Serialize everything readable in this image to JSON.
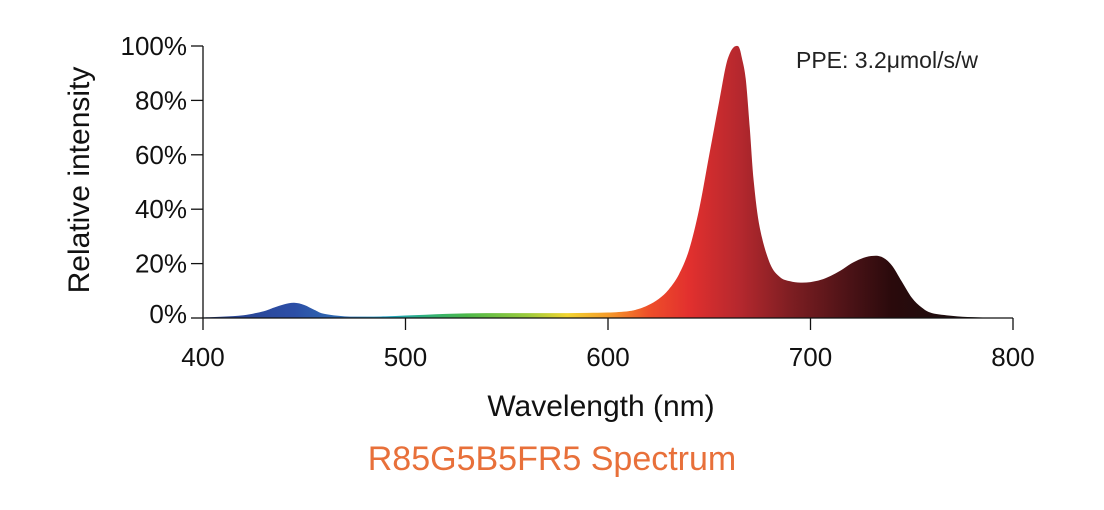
{
  "chart_data": {
    "type": "area",
    "title": "R85G5B5FR5 Spectrum",
    "xlabel": "Wavelength (nm)",
    "ylabel": "Relative intensity",
    "xlim": [
      400,
      800
    ],
    "ylim": [
      0,
      100
    ],
    "x_ticks": [
      400,
      500,
      600,
      700,
      800
    ],
    "x_tick_labels": [
      "400",
      "500",
      "600",
      "700",
      "800"
    ],
    "y_ticks": [
      0,
      20,
      40,
      60,
      80,
      100
    ],
    "y_tick_labels": [
      "0%",
      "20%",
      "40%",
      "60%",
      "80%",
      "100%"
    ],
    "annotation": "PPE:  3.2μmol/s/w",
    "grid": false,
    "x": [
      400,
      410,
      420,
      430,
      435,
      440,
      445,
      450,
      455,
      460,
      470,
      480,
      490,
      500,
      510,
      520,
      530,
      540,
      550,
      560,
      570,
      580,
      590,
      600,
      610,
      615,
      620,
      625,
      630,
      635,
      640,
      645,
      650,
      655,
      658,
      660,
      662,
      664,
      665,
      666,
      668,
      670,
      672,
      675,
      680,
      685,
      690,
      695,
      700,
      705,
      710,
      715,
      720,
      725,
      730,
      735,
      740,
      745,
      750,
      755,
      760,
      770,
      780,
      790,
      800
    ],
    "y": [
      0.2,
      0.5,
      1.0,
      2.5,
      3.8,
      5.0,
      5.6,
      4.8,
      3.0,
      1.5,
      0.6,
      0.5,
      0.6,
      0.9,
      1.2,
      1.5,
      1.7,
      1.8,
      1.8,
      1.8,
      1.8,
      1.8,
      1.9,
      2.0,
      2.5,
      3.3,
      4.8,
      7.0,
      10.5,
      16.0,
      25.0,
      40.0,
      60.0,
      80.0,
      92.0,
      97.0,
      99.5,
      100.0,
      99.0,
      96.0,
      88.0,
      70.0,
      50.0,
      33.0,
      20.0,
      15.0,
      13.5,
      13.0,
      13.2,
      14.0,
      15.5,
      17.5,
      20.0,
      21.8,
      22.8,
      22.5,
      19.5,
      13.5,
      7.5,
      3.8,
      1.8,
      0.8,
      0.3,
      0.1,
      0.0
    ],
    "colors": {
      "caption": "#E8703A",
      "axis": "#111111",
      "spectrum_stops": [
        {
          "nm": 400,
          "color": "#27408B"
        },
        {
          "nm": 445,
          "color": "#2C4EA6"
        },
        {
          "nm": 470,
          "color": "#2F6FB5"
        },
        {
          "nm": 490,
          "color": "#1FA1C7"
        },
        {
          "nm": 510,
          "color": "#2FB07C"
        },
        {
          "nm": 530,
          "color": "#4CB84A"
        },
        {
          "nm": 560,
          "color": "#9BCB3C"
        },
        {
          "nm": 580,
          "color": "#F2D430"
        },
        {
          "nm": 600,
          "color": "#F59B2A"
        },
        {
          "nm": 620,
          "color": "#EE4F2A"
        },
        {
          "nm": 640,
          "color": "#E2302E"
        },
        {
          "nm": 665,
          "color": "#B5282E"
        },
        {
          "nm": 690,
          "color": "#7E1E22"
        },
        {
          "nm": 720,
          "color": "#4A1216"
        },
        {
          "nm": 740,
          "color": "#2A0A0C"
        },
        {
          "nm": 800,
          "color": "#111111"
        }
      ]
    }
  }
}
